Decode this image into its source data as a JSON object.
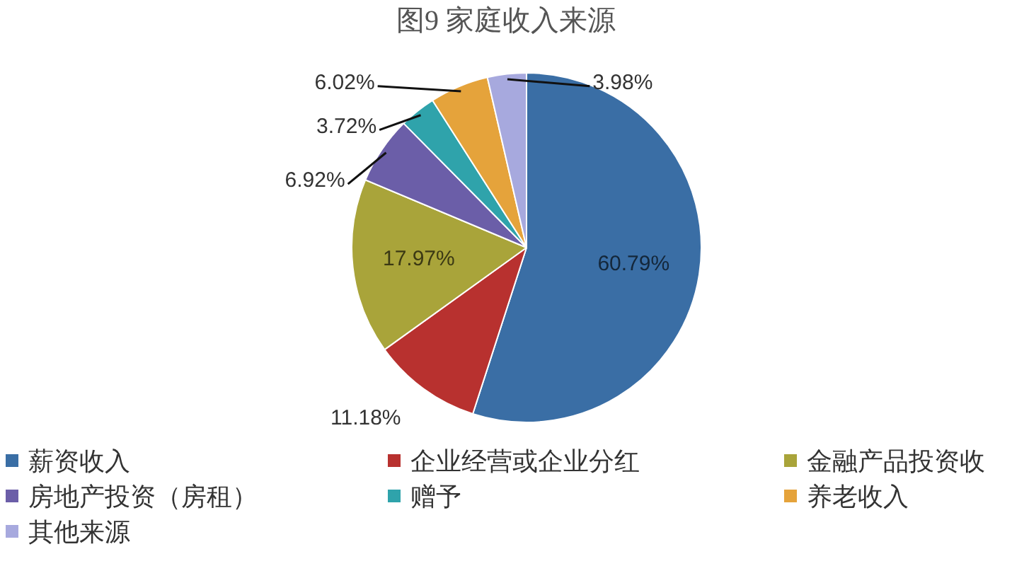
{
  "chart_data": {
    "type": "pie",
    "title": "图9 家庭收入来源",
    "categories": [
      "薪资收入",
      "企业经营或企业分红",
      "金融产品投资收",
      "房地产投资（房租）",
      "赠予",
      "养老收入",
      "其他来源"
    ],
    "values": [
      60.79,
      11.18,
      17.97,
      6.92,
      3.72,
      6.02,
      3.98
    ],
    "colors": [
      "#3a6ea5",
      "#b8312f",
      "#a9a43a",
      "#6b5ea8",
      "#2fa3ab",
      "#e5a33b",
      "#a7a9de"
    ],
    "value_labels": [
      "60.79%",
      "11.18%",
      "17.97%",
      "6.92%",
      "3.72%",
      "6.02%",
      "3.98%"
    ],
    "legend": "bottom"
  }
}
